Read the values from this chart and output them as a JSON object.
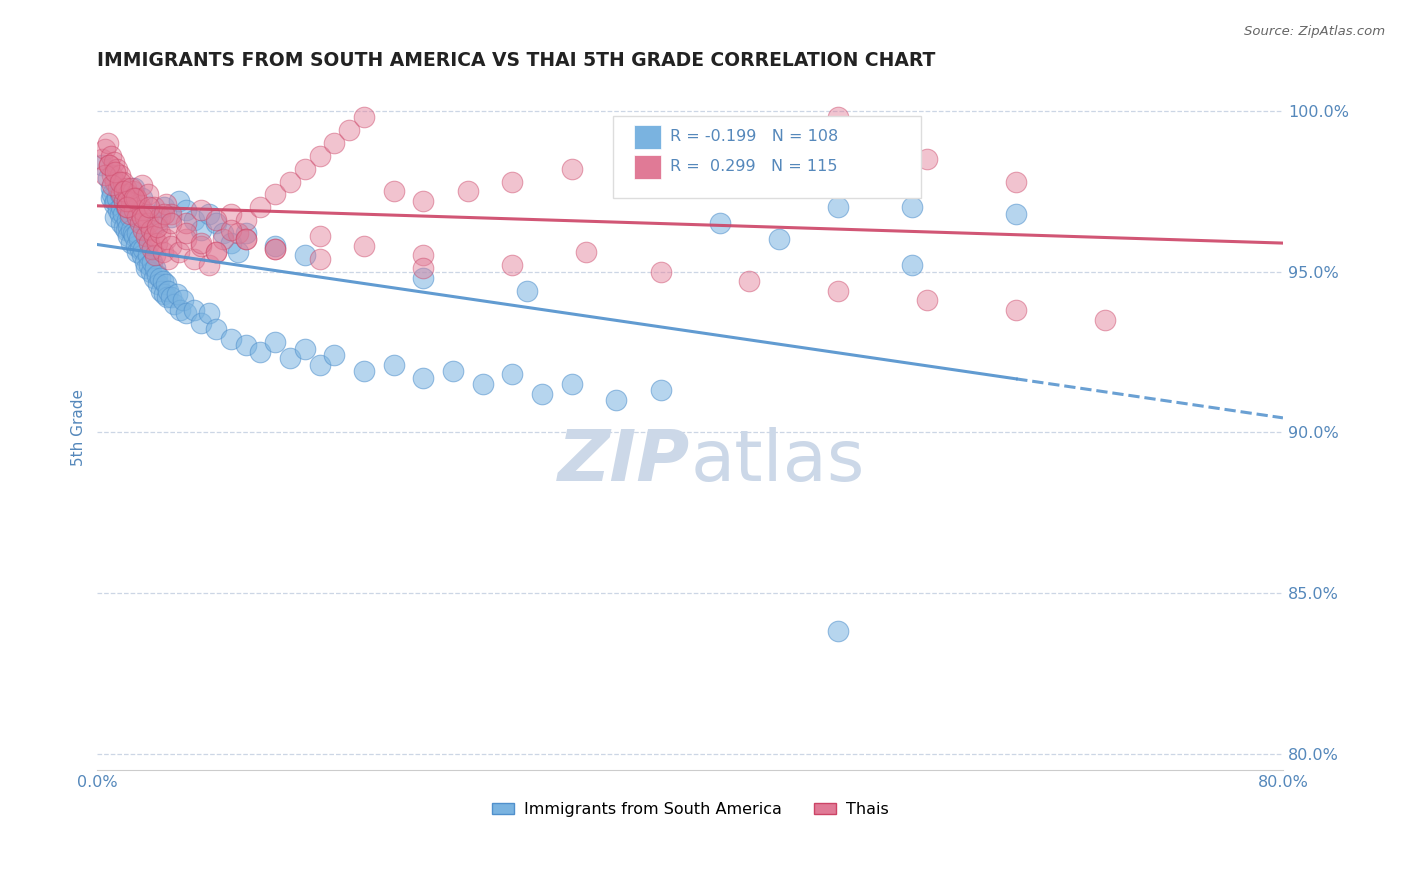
{
  "title": "IMMIGRANTS FROM SOUTH AMERICA VS THAI 5TH GRADE CORRELATION CHART",
  "source": "Source: ZipAtlas.com",
  "ylabel": "5th Grade",
  "xlim": [
    0.0,
    0.8
  ],
  "ylim": [
    0.795,
    1.008
  ],
  "yticks": [
    0.8,
    0.85,
    0.9,
    0.95,
    1.0
  ],
  "ytick_labels": [
    "80.0%",
    "85.0%",
    "90.0%",
    "95.0%",
    "100.0%"
  ],
  "xticks": [
    0.0,
    0.1,
    0.2,
    0.3,
    0.4,
    0.5,
    0.6,
    0.7,
    0.8
  ],
  "xtick_labels": [
    "0.0%",
    "",
    "",
    "",
    "",
    "",
    "",
    "",
    "80.0%"
  ],
  "blue_R": -0.199,
  "blue_N": 108,
  "pink_R": 0.299,
  "pink_N": 115,
  "blue_color": "#7ab3e0",
  "pink_color": "#e07a96",
  "trend_blue": "#5090cc",
  "trend_pink": "#cc4466",
  "grid_color": "#aabbd4",
  "axis_color": "#5588bb",
  "title_color": "#222222",
  "watermark_color": "#ccd8e8",
  "legend_label_blue": "Immigrants from South America",
  "legend_label_pink": "Thais",
  "blue_x": [
    0.003,
    0.007,
    0.009,
    0.009,
    0.01,
    0.011,
    0.012,
    0.012,
    0.013,
    0.014,
    0.015,
    0.015,
    0.016,
    0.016,
    0.017,
    0.018,
    0.018,
    0.019,
    0.019,
    0.02,
    0.021,
    0.021,
    0.022,
    0.023,
    0.023,
    0.024,
    0.025,
    0.026,
    0.027,
    0.027,
    0.028,
    0.029,
    0.03,
    0.031,
    0.032,
    0.033,
    0.034,
    0.035,
    0.036,
    0.037,
    0.038,
    0.039,
    0.04,
    0.041,
    0.042,
    0.043,
    0.044,
    0.045,
    0.046,
    0.047,
    0.048,
    0.05,
    0.052,
    0.054,
    0.056,
    0.058,
    0.06,
    0.065,
    0.07,
    0.075,
    0.08,
    0.09,
    0.1,
    0.11,
    0.12,
    0.13,
    0.14,
    0.15,
    0.16,
    0.18,
    0.2,
    0.22,
    0.24,
    0.26,
    0.28,
    0.3,
    0.32,
    0.35,
    0.38,
    0.42,
    0.46,
    0.5,
    0.55,
    0.62,
    0.015,
    0.02,
    0.025,
    0.03,
    0.035,
    0.04,
    0.045,
    0.05,
    0.055,
    0.06,
    0.065,
    0.07,
    0.075,
    0.08,
    0.085,
    0.09,
    0.095,
    0.1,
    0.12,
    0.14,
    0.5,
    0.55,
    0.22,
    0.29
  ],
  "blue_y": [
    0.983,
    0.979,
    0.976,
    0.973,
    0.974,
    0.971,
    0.972,
    0.967,
    0.973,
    0.969,
    0.974,
    0.968,
    0.97,
    0.965,
    0.968,
    0.972,
    0.964,
    0.97,
    0.963,
    0.966,
    0.964,
    0.961,
    0.967,
    0.963,
    0.959,
    0.962,
    0.961,
    0.958,
    0.962,
    0.956,
    0.96,
    0.957,
    0.955,
    0.957,
    0.953,
    0.951,
    0.955,
    0.952,
    0.95,
    0.953,
    0.948,
    0.951,
    0.949,
    0.946,
    0.948,
    0.944,
    0.947,
    0.943,
    0.946,
    0.942,
    0.944,
    0.942,
    0.94,
    0.943,
    0.938,
    0.941,
    0.937,
    0.938,
    0.934,
    0.937,
    0.932,
    0.929,
    0.927,
    0.925,
    0.928,
    0.923,
    0.926,
    0.921,
    0.924,
    0.919,
    0.921,
    0.917,
    0.919,
    0.915,
    0.918,
    0.912,
    0.915,
    0.91,
    0.913,
    0.965,
    0.96,
    0.97,
    0.97,
    0.968,
    0.975,
    0.972,
    0.976,
    0.973,
    0.968,
    0.965,
    0.97,
    0.967,
    0.972,
    0.969,
    0.966,
    0.963,
    0.968,
    0.965,
    0.962,
    0.959,
    0.956,
    0.962,
    0.958,
    0.955,
    0.838,
    0.952,
    0.948,
    0.944
  ],
  "pink_x": [
    0.003,
    0.005,
    0.007,
    0.008,
    0.009,
    0.01,
    0.011,
    0.012,
    0.013,
    0.014,
    0.015,
    0.016,
    0.017,
    0.018,
    0.019,
    0.02,
    0.021,
    0.022,
    0.023,
    0.024,
    0.025,
    0.026,
    0.027,
    0.028,
    0.029,
    0.03,
    0.031,
    0.032,
    0.033,
    0.034,
    0.035,
    0.036,
    0.037,
    0.038,
    0.039,
    0.04,
    0.042,
    0.044,
    0.046,
    0.048,
    0.05,
    0.055,
    0.06,
    0.065,
    0.07,
    0.075,
    0.08,
    0.085,
    0.09,
    0.095,
    0.1,
    0.11,
    0.12,
    0.13,
    0.14,
    0.15,
    0.16,
    0.17,
    0.18,
    0.2,
    0.22,
    0.25,
    0.28,
    0.32,
    0.36,
    0.4,
    0.45,
    0.5,
    0.56,
    0.62,
    0.005,
    0.008,
    0.01,
    0.012,
    0.015,
    0.018,
    0.02,
    0.023,
    0.026,
    0.03,
    0.034,
    0.038,
    0.042,
    0.046,
    0.05,
    0.06,
    0.07,
    0.08,
    0.09,
    0.1,
    0.12,
    0.15,
    0.18,
    0.22,
    0.28,
    0.33,
    0.38,
    0.44,
    0.5,
    0.56,
    0.62,
    0.68,
    0.02,
    0.025,
    0.03,
    0.035,
    0.04,
    0.045,
    0.05,
    0.06,
    0.07,
    0.08,
    0.1,
    0.12,
    0.15,
    0.22
  ],
  "pink_y": [
    0.985,
    0.988,
    0.99,
    0.983,
    0.986,
    0.98,
    0.984,
    0.978,
    0.982,
    0.976,
    0.98,
    0.974,
    0.978,
    0.972,
    0.976,
    0.97,
    0.974,
    0.968,
    0.972,
    0.975,
    0.969,
    0.973,
    0.967,
    0.971,
    0.965,
    0.969,
    0.963,
    0.967,
    0.961,
    0.965,
    0.959,
    0.963,
    0.957,
    0.961,
    0.955,
    0.959,
    0.962,
    0.956,
    0.96,
    0.954,
    0.958,
    0.956,
    0.96,
    0.954,
    0.958,
    0.952,
    0.956,
    0.96,
    0.968,
    0.962,
    0.966,
    0.97,
    0.974,
    0.978,
    0.982,
    0.986,
    0.99,
    0.994,
    0.998,
    0.975,
    0.972,
    0.975,
    0.978,
    0.982,
    0.986,
    0.99,
    0.994,
    0.998,
    0.985,
    0.978,
    0.98,
    0.983,
    0.977,
    0.981,
    0.978,
    0.975,
    0.972,
    0.976,
    0.973,
    0.977,
    0.974,
    0.97,
    0.967,
    0.971,
    0.968,
    0.965,
    0.969,
    0.966,
    0.963,
    0.96,
    0.957,
    0.961,
    0.958,
    0.955,
    0.952,
    0.956,
    0.95,
    0.947,
    0.944,
    0.941,
    0.938,
    0.935,
    0.97,
    0.973,
    0.967,
    0.97,
    0.964,
    0.968,
    0.965,
    0.962,
    0.959,
    0.956,
    0.96,
    0.957,
    0.954,
    0.951
  ]
}
